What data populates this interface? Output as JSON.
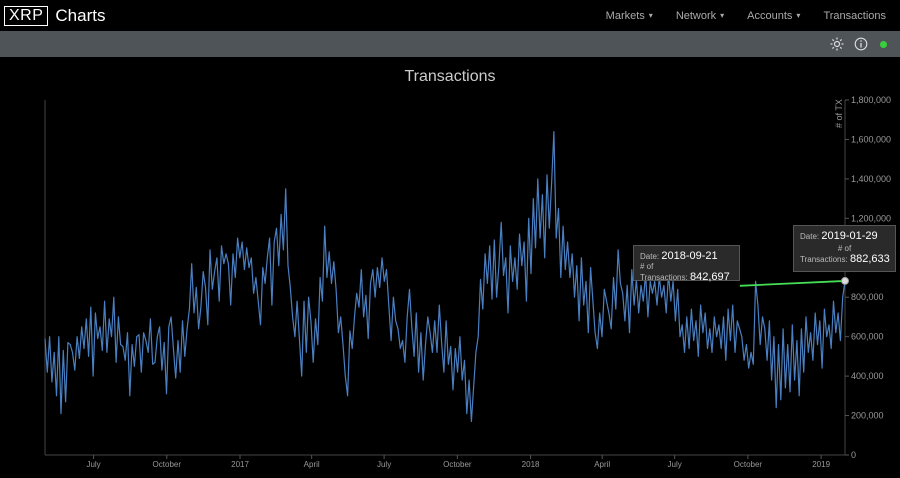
{
  "brand": {
    "logo_text": "XRP",
    "title": "Charts"
  },
  "nav": [
    {
      "label": "Markets",
      "caret": "▾"
    },
    {
      "label": "Network",
      "caret": "▾"
    },
    {
      "label": "Accounts",
      "caret": "▾"
    },
    {
      "label": "Transactions"
    }
  ],
  "toolbar": {
    "icons": [
      "sun-icon",
      "info-icon",
      "status-dot"
    ],
    "status_color": "#36d13a"
  },
  "tooltips": [
    {
      "date_label": "Date:",
      "date": "2018-09-21",
      "value_label": "# of Transactions:",
      "value": "842,697"
    },
    {
      "date_label": "Date:",
      "date": "2019-01-29",
      "value_label_1": "# of",
      "value_label_2": "Transactions:",
      "value": "882,633"
    }
  ],
  "chart_data": {
    "type": "line",
    "title": "Transactions",
    "ylabel": "# of TX",
    "ylim": [
      0,
      1800000
    ],
    "yticks": [
      "0",
      "200,000",
      "400,000",
      "600,000",
      "800,000",
      "1,000,000",
      "1,200,000",
      "1,400,000",
      "1,600,000",
      "1,800,000"
    ],
    "ytick_values": [
      0,
      200000,
      400000,
      600000,
      800000,
      1000000,
      1200000,
      1400000,
      1600000,
      1800000
    ],
    "xticks": [
      "July",
      "October",
      "2017",
      "April",
      "July",
      "October",
      "2018",
      "April",
      "July",
      "October",
      "2019"
    ],
    "x_start": "2016-05-01",
    "x_end": "2019-01-31",
    "xtick_dates": [
      "2016-07-01",
      "2016-10-01",
      "2017-01-01",
      "2017-04-01",
      "2017-07-01",
      "2017-10-01",
      "2018-01-01",
      "2018-04-01",
      "2018-07-01",
      "2018-10-01",
      "2019-01-01"
    ],
    "line_color": "#4a7fc1",
    "grid": false,
    "series": [
      {
        "values": [
          590000,
          420000,
          600000,
          370000,
          520000,
          300000,
          600000,
          210000,
          530000,
          270000,
          570000,
          560000,
          520000,
          430000,
          600000,
          490000,
          650000,
          540000,
          690000,
          500000,
          750000,
          400000,
          720000,
          590000,
          650000,
          530000,
          780000,
          520000,
          690000,
          600000,
          800000,
          470000,
          700000,
          560000,
          550000,
          480000,
          620000,
          300000,
          560000,
          450000,
          600000,
          610000,
          420000,
          620000,
          580000,
          520000,
          690000,
          460000,
          470000,
          600000,
          650000,
          430000,
          570000,
          310000,
          650000,
          700000,
          540000,
          390000,
          580000,
          420000,
          680000,
          500000,
          640000,
          740000,
          970000,
          720000,
          850000,
          640000,
          750000,
          930000,
          850000,
          660000,
          1040000,
          840000,
          930000,
          1000000,
          780000,
          1060000,
          970000,
          1020000,
          970000,
          760000,
          1020000,
          900000,
          1100000,
          1000000,
          1080000,
          940000,
          1050000,
          950000,
          1000000,
          820000,
          900000,
          780000,
          660000,
          950000,
          870000,
          1000000,
          1100000,
          760000,
          1080000,
          1150000,
          960000,
          1220000,
          1040000,
          1350000,
          960000,
          850000,
          700000,
          600000,
          780000,
          590000,
          400000,
          780000,
          520000,
          800000,
          680000,
          470000,
          690000,
          560000,
          900000,
          780000,
          1160000,
          900000,
          1030000,
          870000,
          980000,
          840000,
          620000,
          700000,
          560000,
          400000,
          300000,
          630000,
          540000,
          700000,
          820000,
          750000,
          940000,
          700000,
          810000,
          590000,
          870000,
          940000,
          800000,
          950000,
          850000,
          1000000,
          880000,
          940000,
          760000,
          580000,
          800000,
          680000,
          640000,
          540000,
          580000,
          470000,
          700000,
          840000,
          650000,
          500000,
          720000,
          420000,
          620000,
          380000,
          560000,
          700000,
          620000,
          520000,
          680000,
          520000,
          760000,
          570000,
          420000,
          680000,
          460000,
          550000,
          330000,
          540000,
          420000,
          600000,
          380000,
          480000,
          210000,
          380000,
          170000,
          350000,
          520000,
          600000,
          890000,
          740000,
          1020000,
          870000,
          1060000,
          790000,
          1090000,
          800000,
          960000,
          1180000,
          910000,
          1000000,
          720000,
          1060000,
          880000,
          1000000,
          840000,
          1120000,
          960000,
          1080000,
          780000,
          1200000,
          920000,
          1300000,
          1050000,
          1400000,
          1100000,
          1320000,
          1000000,
          1420000,
          1150000,
          1380000,
          1640000,
          1100000,
          1250000,
          900000,
          1160000,
          940000,
          1080000,
          900000,
          1020000,
          800000,
          960000,
          680000,
          1000000,
          760000,
          880000,
          620000,
          950000,
          780000,
          620000,
          540000,
          720000,
          600000,
          840000,
          780000,
          720000,
          640000,
          900000,
          740000,
          1040000,
          870000,
          820000,
          680000,
          860000,
          620000,
          940000,
          760000,
          890000,
          720000,
          860000,
          780000,
          920000,
          700000,
          880000,
          820000,
          880000,
          760000,
          900000,
          800000,
          860000,
          720000,
          920000,
          780000,
          880000,
          680000,
          840000,
          600000,
          660000,
          520000,
          700000,
          540000,
          740000,
          580000,
          680000,
          500000,
          760000,
          620000,
          720000,
          540000,
          640000,
          520000,
          700000,
          600000,
          660000,
          540000,
          700000,
          480000,
          740000,
          580000,
          760000,
          520000,
          680000,
          640000,
          600000,
          480000,
          560000,
          440000,
          520000,
          460000,
          880000,
          760000,
          560000,
          700000,
          640000,
          480000,
          680000,
          380000,
          600000,
          240000,
          560000,
          280000,
          640000,
          340000,
          560000,
          320000,
          660000,
          380000,
          580000,
          300000,
          640000,
          420000,
          700000,
          520000,
          620000,
          480000,
          720000,
          560000,
          680000,
          440000,
          740000,
          600000,
          660000,
          540000,
          780000,
          620000,
          720000,
          580000,
          800000,
          882633
        ]
      }
    ]
  }
}
